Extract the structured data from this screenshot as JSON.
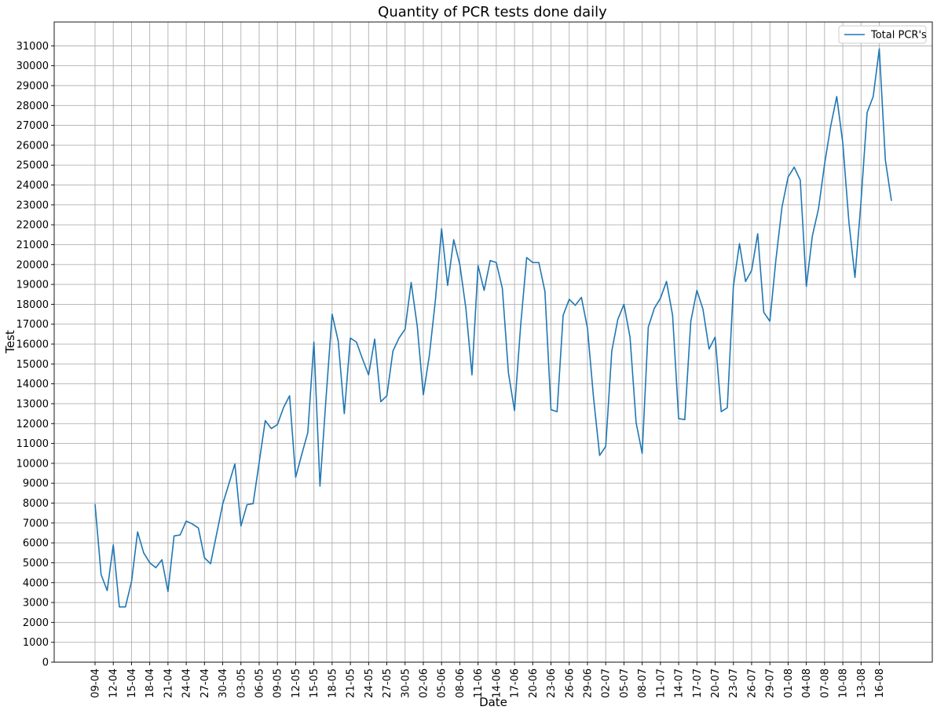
{
  "chart_data": {
    "type": "line",
    "title": "Quantity of PCR tests done daily",
    "xlabel": "Date",
    "ylabel": "Test",
    "ylim": [
      0,
      32200
    ],
    "yticks": [
      0,
      1000,
      2000,
      3000,
      4000,
      5000,
      6000,
      7000,
      8000,
      9000,
      10000,
      11000,
      12000,
      13000,
      14000,
      15000,
      16000,
      17000,
      18000,
      19000,
      20000,
      21000,
      22000,
      23000,
      24000,
      25000,
      26000,
      27000,
      28000,
      29000,
      30000,
      31000
    ],
    "x_tick_labels": [
      "09-04",
      "12-04",
      "15-04",
      "18-04",
      "21-04",
      "24-04",
      "27-04",
      "30-04",
      "03-05",
      "06-05",
      "09-05",
      "12-05",
      "15-05",
      "18-05",
      "21-05",
      "24-05",
      "27-05",
      "30-05",
      "02-06",
      "05-06",
      "08-06",
      "11-06",
      "14-06",
      "17-06",
      "20-06",
      "23-06",
      "26-06",
      "29-06",
      "02-07",
      "05-07",
      "08-07",
      "11-07",
      "14-07",
      "17-07",
      "20-07",
      "23-07",
      "26-07",
      "29-07",
      "01-08",
      "04-08",
      "07-08",
      "10-08",
      "13-08",
      "16-08"
    ],
    "x_tick_every_n_days": 3,
    "grid": true,
    "legend_position": "top-right",
    "series": [
      {
        "name": "Total PCR's",
        "color": "#1f77b4",
        "values": [
          7950,
          4400,
          3600,
          5900,
          2780,
          2780,
          4050,
          6550,
          5500,
          5000,
          4750,
          5150,
          3550,
          6350,
          6400,
          7100,
          6950,
          6750,
          5250,
          4950,
          6450,
          7950,
          8950,
          9970,
          6850,
          7920,
          7970,
          10050,
          12150,
          11750,
          11950,
          12800,
          13400,
          9300,
          10450,
          11550,
          16100,
          8850,
          13300,
          17500,
          16150,
          12500,
          16300,
          16100,
          15250,
          14450,
          16250,
          13100,
          13400,
          15650,
          16300,
          16750,
          19100,
          16900,
          13450,
          15450,
          18250,
          21800,
          18950,
          21250,
          20000,
          17800,
          14450,
          19950,
          18700,
          20200,
          20100,
          18800,
          14550,
          12650,
          16900,
          20350,
          20100,
          20100,
          18650,
          12700,
          12600,
          17450,
          18250,
          17950,
          18350,
          16800,
          13300,
          10400,
          10850,
          15650,
          17250,
          18000,
          16350,
          12050,
          10500,
          16850,
          17800,
          18300,
          19150,
          17450,
          12250,
          12200,
          17150,
          18700,
          17750,
          15750,
          16350,
          12600,
          12800,
          18900,
          21050,
          19150,
          19700,
          21550,
          17600,
          17150,
          20250,
          22900,
          24400,
          24900,
          24250,
          18900,
          21450,
          22800,
          25050,
          26950,
          28450,
          26100,
          22150,
          19350,
          23200,
          27650,
          28450,
          30850,
          25250,
          23200
        ]
      }
    ]
  }
}
